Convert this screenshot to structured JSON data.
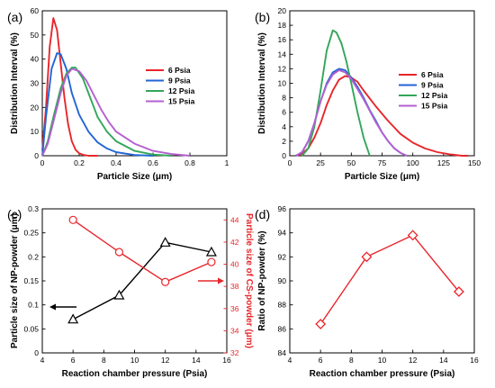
{
  "panels": [
    {
      "label": "(a)"
    },
    {
      "label": "(b)"
    },
    {
      "label": "(c)"
    },
    {
      "label": "(d)"
    }
  ],
  "chart_data": [
    {
      "type": "line",
      "panel": "(a)",
      "xlabel": "Particle Size (μm)",
      "ylabel": "Distribution Interval (%)",
      "xlim": [
        0,
        1
      ],
      "ylim": [
        0,
        60
      ],
      "xticks": [
        "0",
        "0.2",
        "0.4",
        "0.6",
        "0.8",
        "1"
      ],
      "yticks": [
        "0",
        "10",
        "20",
        "30",
        "40",
        "50",
        "60"
      ],
      "legend_position": "right",
      "series": [
        {
          "name": "6 Psia",
          "color": "#e8262b",
          "x": [
            0,
            0.02,
            0.04,
            0.06,
            0.08,
            0.1,
            0.12,
            0.14,
            0.16,
            0.18,
            0.2,
            0.22,
            0.25,
            0.3
          ],
          "y": [
            2,
            20,
            45,
            57,
            52,
            38,
            24,
            13,
            6,
            2.5,
            1,
            0.4,
            0,
            0
          ]
        },
        {
          "name": "9 Psia",
          "color": "#2266d4",
          "x": [
            0,
            0.02,
            0.05,
            0.08,
            0.1,
            0.13,
            0.16,
            0.2,
            0.25,
            0.3,
            0.35,
            0.4,
            0.5,
            0.6
          ],
          "y": [
            0,
            16,
            36,
            42.5,
            42,
            36,
            26,
            17,
            10,
            5.5,
            3,
            1.5,
            0.3,
            0
          ]
        },
        {
          "name": "12 Psia",
          "color": "#33a65a",
          "x": [
            0,
            0.03,
            0.06,
            0.1,
            0.13,
            0.16,
            0.18,
            0.22,
            0.26,
            0.3,
            0.35,
            0.4,
            0.5,
            0.6,
            0.7
          ],
          "y": [
            0,
            6,
            16,
            28,
            34,
            36.5,
            36.5,
            32,
            24,
            16,
            10,
            6,
            2,
            0.5,
            0
          ]
        },
        {
          "name": "15 Psia",
          "color": "#b45fd1",
          "x": [
            0,
            0.03,
            0.06,
            0.1,
            0.13,
            0.16,
            0.2,
            0.24,
            0.28,
            0.32,
            0.36,
            0.4,
            0.5,
            0.6,
            0.7,
            0.8
          ],
          "y": [
            0,
            5,
            14,
            26,
            33,
            36,
            35,
            31,
            25,
            19,
            14,
            10,
            5,
            2,
            0.7,
            0
          ]
        }
      ]
    },
    {
      "type": "line",
      "panel": "(b)",
      "xlabel": "Particle Size (μm)",
      "ylabel": "Distribution Interval (%)",
      "xlim": [
        0,
        150
      ],
      "ylim": [
        0,
        20
      ],
      "xticks": [
        "0",
        "25",
        "50",
        "75",
        "100",
        "125",
        "150"
      ],
      "yticks": [
        "0",
        "2",
        "4",
        "6",
        "8",
        "10",
        "12",
        "14",
        "16",
        "18",
        "20"
      ],
      "legend_position": "right",
      "series": [
        {
          "name": "6 Psia",
          "color": "#e8262b",
          "x": [
            5,
            10,
            15,
            20,
            25,
            30,
            35,
            40,
            45,
            50,
            55,
            60,
            70,
            80,
            90,
            100,
            110,
            120,
            130,
            140,
            145
          ],
          "y": [
            0,
            0.3,
            1,
            2.5,
            4.5,
            7,
            9,
            10.5,
            11,
            10.8,
            10.2,
            9,
            6.8,
            4.8,
            3,
            1.8,
            1,
            0.5,
            0.2,
            0,
            0
          ]
        },
        {
          "name": "9 Psia",
          "color": "#2266d4",
          "x": [
            5,
            10,
            15,
            20,
            25,
            30,
            35,
            40,
            45,
            50,
            55,
            60,
            65,
            70,
            75,
            80,
            85,
            90,
            95
          ],
          "y": [
            0,
            0.5,
            2,
            4.5,
            7.5,
            10,
            11.5,
            12,
            11.8,
            10.8,
            9.5,
            8,
            6.3,
            4.8,
            3.2,
            2,
            1,
            0.4,
            0
          ]
        },
        {
          "name": "12 Psia",
          "color": "#33a65a",
          "x": [
            10,
            15,
            20,
            25,
            30,
            35,
            38,
            42,
            46,
            50,
            55,
            60,
            65
          ],
          "y": [
            0,
            1,
            4,
            9,
            14.5,
            17.3,
            17,
            15.5,
            13,
            10,
            6,
            2.5,
            0
          ]
        },
        {
          "name": "15 Psia",
          "color": "#b45fd1",
          "x": [
            5,
            10,
            15,
            20,
            25,
            30,
            35,
            40,
            45,
            50,
            55,
            60,
            65,
            70,
            75,
            80,
            85,
            90,
            95
          ],
          "y": [
            0,
            0.5,
            2,
            4.5,
            7.5,
            9.8,
            11.2,
            11.8,
            11.5,
            10.6,
            9.2,
            7.8,
            6.2,
            4.6,
            3.2,
            2,
            1,
            0.4,
            0
          ]
        }
      ]
    },
    {
      "type": "line",
      "panel": "(c)",
      "xlabel": "Reaction chamber pressure (Psia)",
      "ylabel": "Particle size of NP-powder (μm)",
      "y2label": "Particle size of CS-powder (μm)",
      "xlim": [
        4,
        16
      ],
      "ylim": [
        0,
        0.3
      ],
      "y2lim": [
        32,
        45
      ],
      "xticks": [
        "4",
        "6",
        "8",
        "10",
        "12",
        "14",
        "16"
      ],
      "yticks": [
        "0",
        "0.05",
        "0.1",
        "0.15",
        "0.2",
        "0.25",
        "0.3"
      ],
      "y2ticks": [
        "32",
        "34",
        "36",
        "38",
        "40",
        "42",
        "44"
      ],
      "series": [
        {
          "color": "#000000",
          "axis": "left",
          "marker": "triangle",
          "x": [
            6,
            9,
            12,
            15
          ],
          "y": [
            0.07,
            0.12,
            0.23,
            0.21
          ]
        },
        {
          "color": "#e8262b",
          "axis": "right",
          "marker": "circle",
          "x": [
            6,
            9,
            12,
            15
          ],
          "y": [
            44,
            41.1,
            38.4,
            40.2
          ]
        }
      ]
    },
    {
      "type": "line",
      "panel": "(d)",
      "xlabel": "Reaction chamber pressure (Psia)",
      "ylabel": "Ratio of NP-powder (%)",
      "xlim": [
        4,
        16
      ],
      "ylim": [
        84,
        96
      ],
      "xticks": [
        "4",
        "6",
        "8",
        "10",
        "12",
        "14",
        "16"
      ],
      "yticks": [
        "84",
        "86",
        "88",
        "90",
        "92",
        "94",
        "96"
      ],
      "series": [
        {
          "color": "#e8262b",
          "marker": "diamond",
          "x": [
            6,
            9,
            12,
            15
          ],
          "y": [
            86.4,
            92,
            93.8,
            89.1
          ]
        }
      ]
    }
  ]
}
